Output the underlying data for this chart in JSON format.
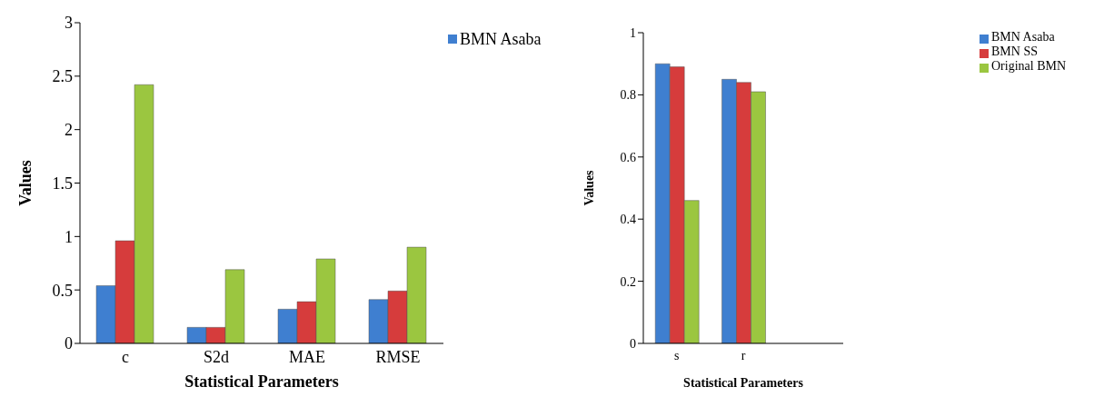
{
  "chart_data": [
    {
      "type": "bar",
      "xlabel": "Statistical Parameters",
      "ylabel": "Values",
      "categories": [
        "c",
        "S2d",
        "MAE",
        "RMSE"
      ],
      "series": [
        {
          "name": "BMN Asaba",
          "color": "#3f7fd0",
          "values": [
            0.54,
            0.15,
            0.32,
            0.41
          ]
        },
        {
          "color": "#d63c3c",
          "values": [
            0.96,
            0.15,
            0.39,
            0.49
          ]
        },
        {
          "color": "#9bc640",
          "values": [
            2.42,
            0.69,
            0.79,
            0.9
          ]
        }
      ],
      "ylim": [
        0,
        3
      ],
      "yticks": [
        0,
        0.5,
        1,
        1.5,
        2,
        2.5,
        3
      ],
      "legend": "top right"
    },
    {
      "type": "bar",
      "xlabel": "Statistical Parameters",
      "ylabel": "Values",
      "categories": [
        "s",
        "r",
        null
      ],
      "series": [
        {
          "name": "BMN Asaba",
          "color": "#3f7fd0",
          "values": [
            0.9,
            0.85,
            null
          ]
        },
        {
          "name": "BMN SS",
          "color": "#d63c3c",
          "values": [
            0.89,
            0.84,
            null
          ]
        },
        {
          "name": "Original BMN",
          "color": "#9bc640",
          "values": [
            0.46,
            0.81,
            null
          ]
        }
      ],
      "ylim": [
        0,
        1
      ],
      "yticks": [
        0,
        0.2,
        0.4,
        0.6,
        0.8,
        1
      ],
      "legend": "right"
    }
  ]
}
